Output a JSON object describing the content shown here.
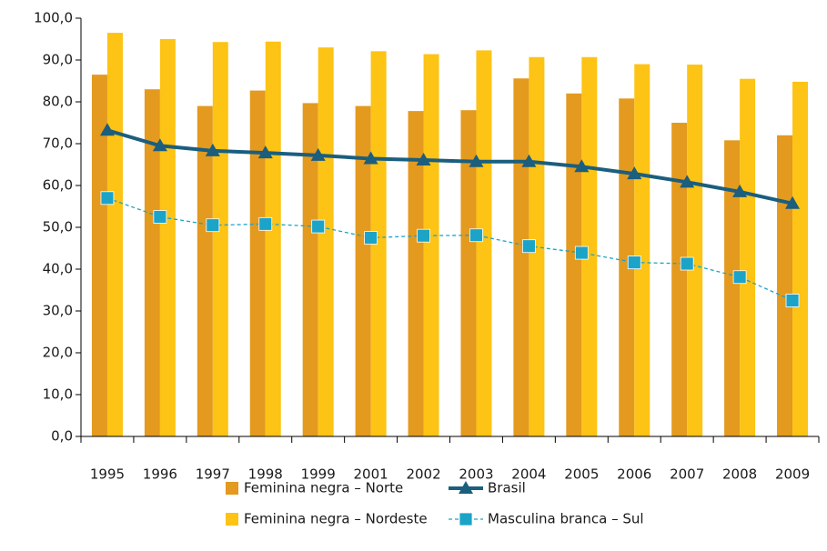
{
  "chart_data": {
    "type": "bar",
    "categories": [
      "1995",
      "1996",
      "1997",
      "1998",
      "1999",
      "2001",
      "2002",
      "2003",
      "2004",
      "2005",
      "2006",
      "2007",
      "2008",
      "2009"
    ],
    "series": [
      {
        "name": "Feminina negra – Norte",
        "type": "bar",
        "color": "#e39a1f",
        "values": [
          86.5,
          83,
          79,
          82.7,
          79.7,
          79,
          77.8,
          78,
          85.6,
          82,
          80.8,
          75,
          70.8,
          72
        ]
      },
      {
        "name": "Feminina negra – Nordeste",
        "type": "bar",
        "color": "#fdc315",
        "values": [
          96.5,
          95,
          94.3,
          94.4,
          93,
          92.1,
          91.4,
          92.3,
          90.7,
          90.7,
          89,
          88.9,
          85.5,
          84.8
        ]
      },
      {
        "name": "Brasil",
        "type": "line",
        "marker": "triangle",
        "dashed": false,
        "color": "#1b5e7e",
        "values": [
          73.2,
          69.5,
          68.3,
          67.8,
          67.2,
          66.4,
          66.1,
          65.7,
          65.7,
          64.5,
          62.8,
          60.8,
          58.5,
          55.7
        ]
      },
      {
        "name": "Masculina branca – Sul",
        "type": "line",
        "marker": "square",
        "dashed": true,
        "color": "#1ca3c8",
        "values": [
          57,
          52.5,
          50.5,
          50.8,
          50.2,
          47.5,
          48,
          48.1,
          45.5,
          43.9,
          41.6,
          41.3,
          38.1,
          32.5
        ]
      }
    ],
    "ylim": [
      0,
      100
    ],
    "yticks": [
      {
        "value": 0,
        "label": "0,0"
      },
      {
        "value": 10,
        "label": "10,0"
      },
      {
        "value": 20,
        "label": "20,0"
      },
      {
        "value": 30,
        "label": "30,0"
      },
      {
        "value": 40,
        "label": "40,0"
      },
      {
        "value": 50,
        "label": "50,0"
      },
      {
        "value": 60,
        "label": "60,0"
      },
      {
        "value": 70,
        "label": "70,0"
      },
      {
        "value": 80,
        "label": "80,0"
      },
      {
        "value": 90,
        "label": "90,0"
      },
      {
        "value": 100,
        "label": "100,0"
      }
    ]
  }
}
